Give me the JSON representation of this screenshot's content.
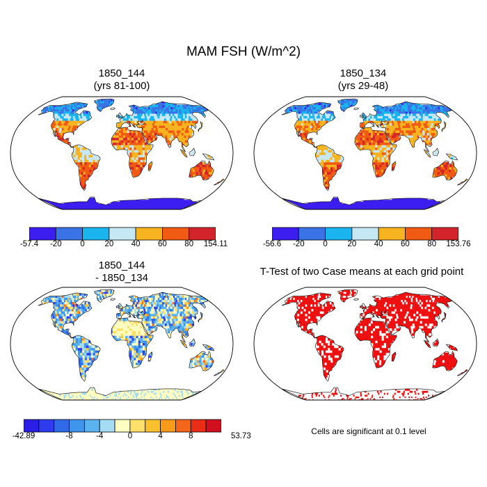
{
  "figure": {
    "title": "MAM FSH (W/m^2)"
  },
  "panels": [
    {
      "id": "p1",
      "title_line1": "1850_144",
      "title_line2": "(yrs 81-100)",
      "colorbar": {
        "colors": [
          "#3d1ef0",
          "#3a73e6",
          "#1ab4ee",
          "#c6e8f5",
          "#f8b420",
          "#f15a13",
          "#d2242a"
        ],
        "labels": [
          "-57.4",
          "-20",
          "0",
          "20",
          "40",
          "60",
          "80",
          "154.11"
        ]
      }
    },
    {
      "id": "p2",
      "title_line1": "1850_134",
      "title_line2": "(yrs 29-48)",
      "colorbar": {
        "colors": [
          "#3d1ef0",
          "#3a73e6",
          "#1ab4ee",
          "#c6e8f5",
          "#f8b420",
          "#f15a13",
          "#d2242a"
        ],
        "labels": [
          "-56.6",
          "-20",
          "0",
          "20",
          "40",
          "60",
          "80",
          "153.76"
        ]
      }
    },
    {
      "id": "p3",
      "title_line1": "1850_144",
      "title_line2": "- 1850_134",
      "colorbar": {
        "colors": [
          "#2d1ee6",
          "#2e3cf0",
          "#2f6ae8",
          "#3d95ec",
          "#5ab2ee",
          "#a6dcf3",
          "#fffdc0",
          "#ffe06a",
          "#fbc02e",
          "#f89a1c",
          "#f4661a",
          "#e92d16",
          "#d1101f"
        ],
        "labels": [
          "-42.89",
          "-8",
          "-4",
          "0",
          "4",
          "8",
          "53.73"
        ]
      }
    },
    {
      "id": "p4",
      "title": "T-Test of two Case means at each grid point",
      "note": "Cells are significant at 0.1 level",
      "sig_color": "#ee1111"
    }
  ]
}
